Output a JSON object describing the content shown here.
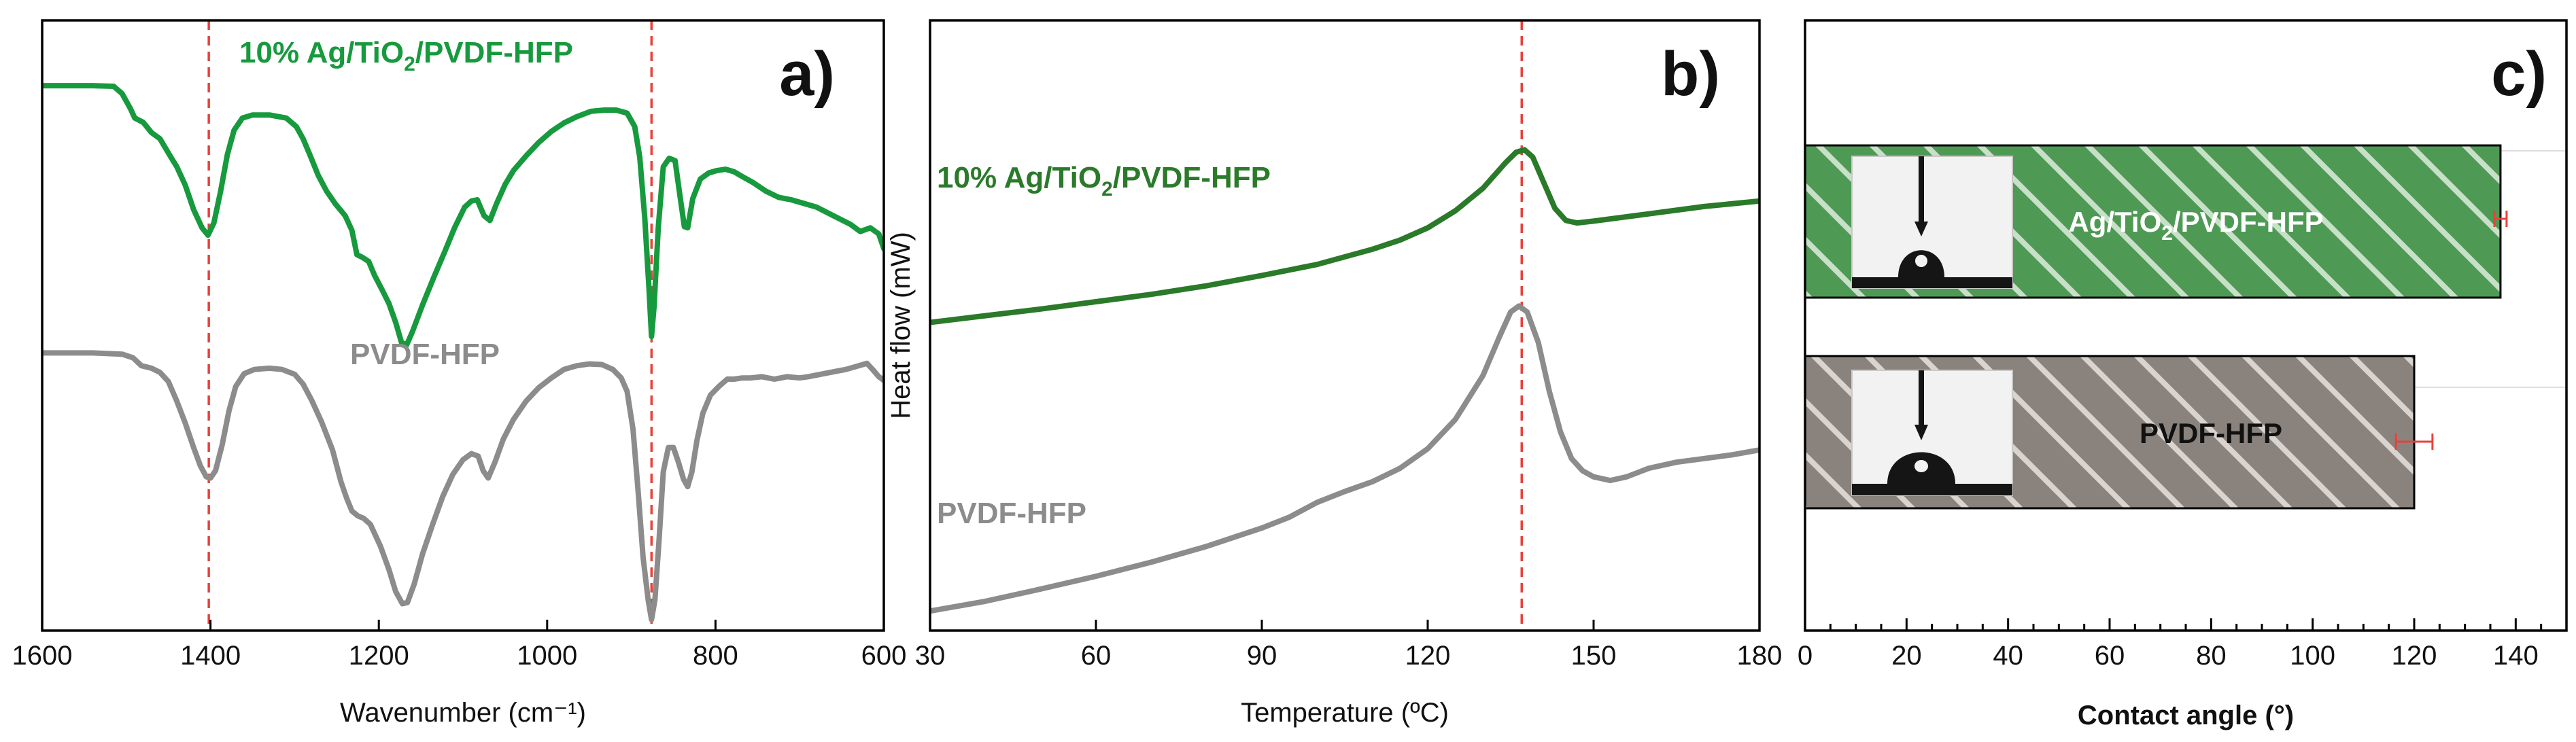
{
  "colors": {
    "green": "#179a3e",
    "green_dark": "#2a7a2a",
    "gray": "#8c8c8c",
    "red": "#e8413a",
    "hatch_green": "#4e9a55",
    "hatch_gray": "#8a837d"
  },
  "chart_data": [
    {
      "id": "a",
      "panel_label": "a)",
      "type": "line",
      "xlabel": "Wavenumber (cm⁻¹)",
      "ylabel": "",
      "xlim": [
        1600,
        600
      ],
      "x_reversed": true,
      "xticks": [
        1600,
        1400,
        1200,
        1000,
        800,
        600
      ],
      "ylim": [
        0,
        1
      ],
      "reference_lines": [
        1402,
        876
      ],
      "series": [
        {
          "name": "10% Ag/TiO2/PVDF-HFP",
          "label_main": "10% Ag/TiO",
          "label_sub": "2",
          "label_tail": "/PVDF-HFP",
          "color": "#179a3e",
          "points": [
            [
              1600,
              0.893
            ],
            [
              1540,
              0.893
            ],
            [
              1515,
              0.892
            ],
            [
              1505,
              0.88
            ],
            [
              1495,
              0.855
            ],
            [
              1490,
              0.84
            ],
            [
              1480,
              0.833
            ],
            [
              1470,
              0.816
            ],
            [
              1460,
              0.806
            ],
            [
              1448,
              0.778
            ],
            [
              1440,
              0.76
            ],
            [
              1430,
              0.73
            ],
            [
              1420,
              0.69
            ],
            [
              1410,
              0.66
            ],
            [
              1403,
              0.648
            ],
            [
              1396,
              0.668
            ],
            [
              1388,
              0.72
            ],
            [
              1380,
              0.78
            ],
            [
              1372,
              0.82
            ],
            [
              1362,
              0.84
            ],
            [
              1350,
              0.845
            ],
            [
              1330,
              0.845
            ],
            [
              1310,
              0.84
            ],
            [
              1298,
              0.826
            ],
            [
              1290,
              0.806
            ],
            [
              1282,
              0.78
            ],
            [
              1272,
              0.746
            ],
            [
              1262,
              0.72
            ],
            [
              1252,
              0.7
            ],
            [
              1240,
              0.68
            ],
            [
              1232,
              0.656
            ],
            [
              1226,
              0.616
            ],
            [
              1220,
              0.612
            ],
            [
              1212,
              0.605
            ],
            [
              1205,
              0.582
            ],
            [
              1196,
              0.558
            ],
            [
              1188,
              0.536
            ],
            [
              1180,
              0.505
            ],
            [
              1173,
              0.472
            ],
            [
              1167,
              0.468
            ],
            [
              1160,
              0.49
            ],
            [
              1148,
              0.534
            ],
            [
              1135,
              0.578
            ],
            [
              1122,
              0.62
            ],
            [
              1110,
              0.66
            ],
            [
              1098,
              0.694
            ],
            [
              1090,
              0.704
            ],
            [
              1083,
              0.706
            ],
            [
              1075,
              0.68
            ],
            [
              1068,
              0.672
            ],
            [
              1060,
              0.7
            ],
            [
              1050,
              0.731
            ],
            [
              1040,
              0.754
            ],
            [
              1025,
              0.778
            ],
            [
              1010,
              0.8
            ],
            [
              995,
              0.818
            ],
            [
              980,
              0.832
            ],
            [
              965,
              0.842
            ],
            [
              948,
              0.851
            ],
            [
              932,
              0.853
            ],
            [
              918,
              0.853
            ],
            [
              905,
              0.848
            ],
            [
              896,
              0.826
            ],
            [
              890,
              0.776
            ],
            [
              884,
              0.676
            ],
            [
              879,
              0.56
            ],
            [
              876,
              0.482
            ],
            [
              873,
              0.53
            ],
            [
              868,
              0.66
            ],
            [
              862,
              0.76
            ],
            [
              855,
              0.774
            ],
            [
              848,
              0.77
            ],
            [
              843,
              0.72
            ],
            [
              837,
              0.662
            ],
            [
              833,
              0.66
            ],
            [
              827,
              0.708
            ],
            [
              818,
              0.74
            ],
            [
              808,
              0.75
            ],
            [
              798,
              0.754
            ],
            [
              788,
              0.756
            ],
            [
              778,
              0.752
            ],
            [
              768,
              0.744
            ],
            [
              755,
              0.734
            ],
            [
              740,
              0.72
            ],
            [
              725,
              0.71
            ],
            [
              710,
              0.706
            ],
            [
              695,
              0.7
            ],
            [
              680,
              0.694
            ],
            [
              660,
              0.68
            ],
            [
              640,
              0.666
            ],
            [
              628,
              0.654
            ],
            [
              616,
              0.66
            ],
            [
              606,
              0.65
            ],
            [
              600,
              0.626
            ]
          ]
        },
        {
          "name": "PVDF-HFP",
          "label_main": "PVDF-HFP",
          "label_sub": "",
          "label_tail": "",
          "color": "#8c8c8c",
          "points": [
            [
              1600,
              0.455
            ],
            [
              1540,
              0.455
            ],
            [
              1505,
              0.453
            ],
            [
              1492,
              0.447
            ],
            [
              1482,
              0.434
            ],
            [
              1470,
              0.43
            ],
            [
              1460,
              0.423
            ],
            [
              1450,
              0.408
            ],
            [
              1440,
              0.376
            ],
            [
              1430,
              0.34
            ],
            [
              1420,
              0.3
            ],
            [
              1412,
              0.27
            ],
            [
              1405,
              0.252
            ],
            [
              1400,
              0.25
            ],
            [
              1394,
              0.262
            ],
            [
              1386,
              0.305
            ],
            [
              1378,
              0.36
            ],
            [
              1370,
              0.4
            ],
            [
              1360,
              0.421
            ],
            [
              1348,
              0.428
            ],
            [
              1330,
              0.43
            ],
            [
              1315,
              0.428
            ],
            [
              1300,
              0.42
            ],
            [
              1290,
              0.404
            ],
            [
              1280,
              0.378
            ],
            [
              1268,
              0.342
            ],
            [
              1255,
              0.296
            ],
            [
              1245,
              0.244
            ],
            [
              1238,
              0.216
            ],
            [
              1232,
              0.196
            ],
            [
              1225,
              0.188
            ],
            [
              1218,
              0.184
            ],
            [
              1210,
              0.174
            ],
            [
              1198,
              0.138
            ],
            [
              1188,
              0.1
            ],
            [
              1180,
              0.064
            ],
            [
              1172,
              0.044
            ],
            [
              1166,
              0.046
            ],
            [
              1158,
              0.076
            ],
            [
              1148,
              0.126
            ],
            [
              1136,
              0.174
            ],
            [
              1124,
              0.22
            ],
            [
              1112,
              0.256
            ],
            [
              1100,
              0.28
            ],
            [
              1090,
              0.29
            ],
            [
              1082,
              0.286
            ],
            [
              1076,
              0.262
            ],
            [
              1070,
              0.25
            ],
            [
              1062,
              0.276
            ],
            [
              1052,
              0.314
            ],
            [
              1040,
              0.346
            ],
            [
              1025,
              0.376
            ],
            [
              1010,
              0.398
            ],
            [
              995,
              0.414
            ],
            [
              980,
              0.428
            ],
            [
              965,
              0.434
            ],
            [
              950,
              0.437
            ],
            [
              935,
              0.436
            ],
            [
              922,
              0.428
            ],
            [
              912,
              0.414
            ],
            [
              905,
              0.392
            ],
            [
              898,
              0.33
            ],
            [
              892,
              0.23
            ],
            [
              886,
              0.12
            ],
            [
              880,
              0.05
            ],
            [
              876,
              0.018
            ],
            [
              872,
              0.05
            ],
            [
              867,
              0.15
            ],
            [
              862,
              0.26
            ],
            [
              856,
              0.3
            ],
            [
              850,
              0.3
            ],
            [
              844,
              0.276
            ],
            [
              838,
              0.248
            ],
            [
              833,
              0.236
            ],
            [
              828,
              0.26
            ],
            [
              822,
              0.312
            ],
            [
              815,
              0.356
            ],
            [
              806,
              0.386
            ],
            [
              796,
              0.4
            ],
            [
              786,
              0.412
            ],
            [
              778,
              0.412
            ],
            [
              768,
              0.414
            ],
            [
              758,
              0.414
            ],
            [
              745,
              0.416
            ],
            [
              730,
              0.412
            ],
            [
              715,
              0.416
            ],
            [
              700,
              0.414
            ],
            [
              690,
              0.416
            ],
            [
              675,
              0.42
            ],
            [
              660,
              0.424
            ],
            [
              645,
              0.428
            ],
            [
              630,
              0.434
            ],
            [
              620,
              0.438
            ],
            [
              612,
              0.426
            ],
            [
              606,
              0.416
            ],
            [
              600,
              0.41
            ]
          ]
        }
      ]
    },
    {
      "id": "b",
      "panel_label": "b)",
      "type": "line",
      "xlabel": "Temperature (ºC)",
      "ylabel": "Heat flow (mW)",
      "xlim": [
        30,
        180
      ],
      "xticks": [
        30,
        60,
        90,
        120,
        150,
        180
      ],
      "ylim": [
        0,
        1
      ],
      "reference_lines": [
        137
      ],
      "series": [
        {
          "name": "10% Ag/TiO2/PVDF-HFP",
          "label_main": "10% Ag/TiO",
          "label_sub": "2",
          "label_tail": "/PVDF-HFP",
          "color": "#2a7a2a",
          "points": [
            [
              30,
              0.505
            ],
            [
              40,
              0.516
            ],
            [
              50,
              0.527
            ],
            [
              60,
              0.539
            ],
            [
              70,
              0.551
            ],
            [
              80,
              0.565
            ],
            [
              90,
              0.582
            ],
            [
              100,
              0.6
            ],
            [
              110,
              0.625
            ],
            [
              115,
              0.64
            ],
            [
              120,
              0.66
            ],
            [
              125,
              0.688
            ],
            [
              130,
              0.725
            ],
            [
              134,
              0.766
            ],
            [
              136,
              0.784
            ],
            [
              137.5,
              0.788
            ],
            [
              139,
              0.776
            ],
            [
              141,
              0.734
            ],
            [
              143,
              0.692
            ],
            [
              145,
              0.672
            ],
            [
              147,
              0.668
            ],
            [
              150,
              0.671
            ],
            [
              160,
              0.683
            ],
            [
              170,
              0.695
            ],
            [
              180,
              0.704
            ]
          ]
        },
        {
          "name": "PVDF-HFP",
          "label_main": "PVDF-HFP",
          "label_sub": "",
          "label_tail": "",
          "color": "#8c8c8c",
          "points": [
            [
              30,
              0.032
            ],
            [
              40,
              0.048
            ],
            [
              50,
              0.068
            ],
            [
              60,
              0.089
            ],
            [
              70,
              0.112
            ],
            [
              80,
              0.138
            ],
            [
              90,
              0.168
            ],
            [
              95,
              0.186
            ],
            [
              100,
              0.21
            ],
            [
              105,
              0.228
            ],
            [
              110,
              0.244
            ],
            [
              115,
              0.266
            ],
            [
              120,
              0.298
            ],
            [
              125,
              0.346
            ],
            [
              130,
              0.418
            ],
            [
              133,
              0.482
            ],
            [
              135,
              0.522
            ],
            [
              136.5,
              0.532
            ],
            [
              138,
              0.522
            ],
            [
              140,
              0.472
            ],
            [
              142,
              0.392
            ],
            [
              144,
              0.326
            ],
            [
              146,
              0.282
            ],
            [
              148,
              0.262
            ],
            [
              150,
              0.252
            ],
            [
              153,
              0.246
            ],
            [
              156,
              0.252
            ],
            [
              160,
              0.266
            ],
            [
              165,
              0.276
            ],
            [
              170,
              0.282
            ],
            [
              175,
              0.288
            ],
            [
              180,
              0.296
            ]
          ]
        }
      ]
    },
    {
      "id": "c",
      "panel_label": "c)",
      "type": "bar",
      "orientation": "horizontal",
      "xlabel": "Contact angle (°)",
      "ylabel": "",
      "xlim": [
        0,
        150
      ],
      "xticks": [
        0,
        20,
        40,
        60,
        80,
        100,
        120,
        140
      ],
      "grid": true,
      "bars": [
        {
          "label_main": "Ag/TiO",
          "label_sub": "2",
          "label_tail": "/PVDF-HFP",
          "value": 137,
          "error": 1.2,
          "color": "#4e9a55"
        },
        {
          "label_main": "PVDF-HFP",
          "label_sub": "",
          "label_tail": "",
          "value": 120,
          "error": 3.6,
          "color": "#8a837d"
        }
      ]
    }
  ]
}
